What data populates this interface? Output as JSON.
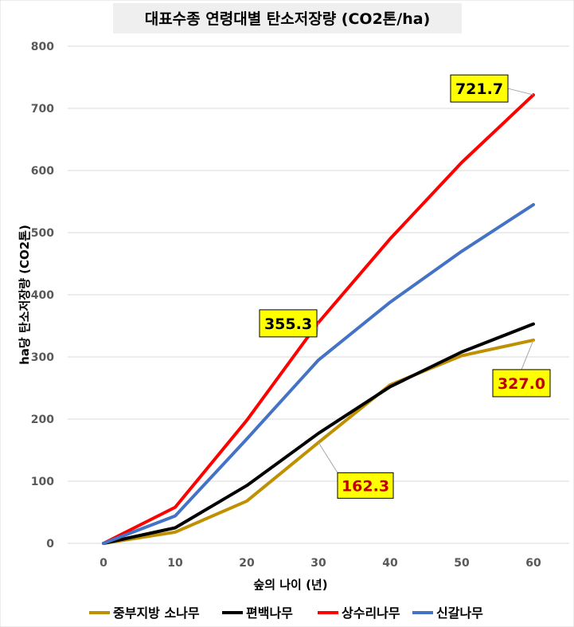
{
  "chart_data": {
    "type": "line",
    "title": "대표수종 연령대별 탄소저장량 (CO2톤/ha)",
    "xlabel": "숲의 나이 (년)",
    "ylabel": "ha당 탄소저장량 (CO2톤)",
    "x": [
      0,
      10,
      20,
      30,
      40,
      50,
      60
    ],
    "xlim": [
      0,
      60
    ],
    "ylim": [
      0,
      800
    ],
    "yticks": [
      0,
      100,
      200,
      300,
      400,
      500,
      600,
      700,
      800
    ],
    "grid": true,
    "legend_position": "bottom",
    "series": [
      {
        "name": "중부지방 소나무",
        "color": "#BF9000",
        "values": [
          0,
          18,
          68,
          162.3,
          255,
          302,
          327.0
        ]
      },
      {
        "name": "편백나무",
        "color": "#000000",
        "values": [
          0,
          25,
          93,
          177,
          252,
          308,
          353
        ]
      },
      {
        "name": "상수리나무",
        "color": "#FF0000",
        "values": [
          0,
          58,
          198,
          355.3,
          490,
          613,
          721.7
        ]
      },
      {
        "name": "신갈나무",
        "color": "#4472C4",
        "values": [
          0,
          44,
          168,
          295,
          388,
          470,
          545
        ]
      }
    ],
    "annotations": [
      {
        "text": "721.7",
        "series": 2,
        "x": 60,
        "value": 721.7,
        "color": "#000000"
      },
      {
        "text": "355.3",
        "series": 2,
        "x": 30,
        "value": 355.3,
        "color": "#000000"
      },
      {
        "text": "162.3",
        "series": 0,
        "x": 30,
        "value": 162.3,
        "color": "#C00000"
      },
      {
        "text": "327.0",
        "series": 0,
        "x": 60,
        "value": 327.0,
        "color": "#C00000"
      }
    ]
  }
}
